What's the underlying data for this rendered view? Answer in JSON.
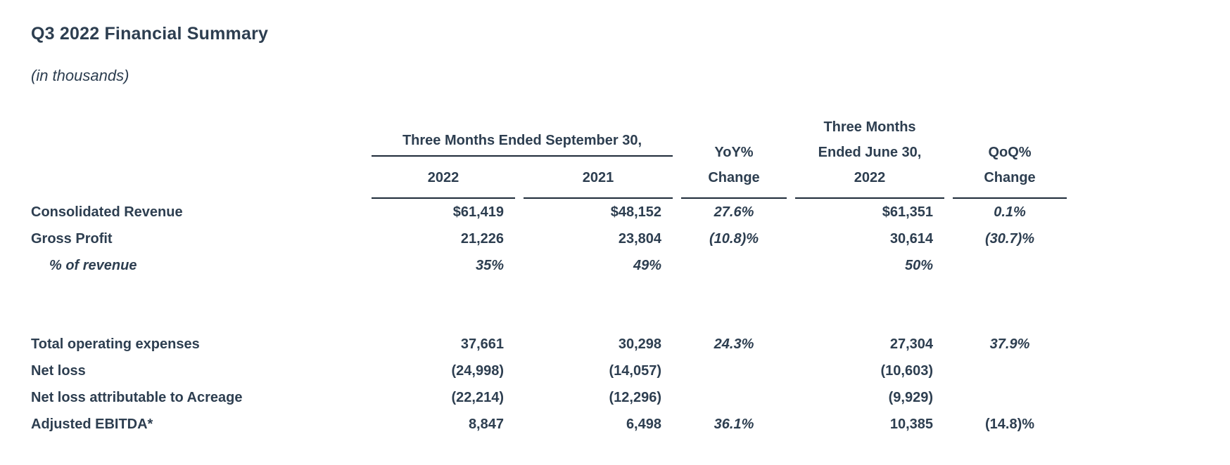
{
  "title": "Q3 2022 Financial Summary",
  "subtitle": "(in thousands)",
  "colors": {
    "text": "#2d3e50",
    "rule": "#1d2a38",
    "background": "#ffffff"
  },
  "table": {
    "header": {
      "group": "Three Months Ended September 30,",
      "sep2022": "2022",
      "sep2021": "2021",
      "yoy": [
        "YoY%",
        "Change"
      ],
      "june": [
        "Three Months",
        "Ended June 30,",
        "2022"
      ],
      "qoq": [
        "QoQ%",
        "Change"
      ]
    },
    "rows": [
      {
        "label": "Consolidated Revenue",
        "sep2022": "$61,419",
        "sep2021": "$48,152",
        "yoy": "27.6%",
        "jun2022": "$61,351",
        "qoq": "0.1%"
      },
      {
        "label": "Gross Profit",
        "sep2022": "21,226",
        "sep2021": "23,804",
        "yoy": "(10.8)%",
        "jun2022": "30,614",
        "qoq": "(30.7)%"
      },
      {
        "label": "% of revenue",
        "sep2022": "35%",
        "sep2021": "49%",
        "yoy": "",
        "jun2022": "50%",
        "qoq": ""
      },
      {
        "label": "Total operating expenses",
        "sep2022": "37,661",
        "sep2021": "30,298",
        "yoy": "24.3%",
        "jun2022": "27,304",
        "qoq": "37.9%"
      },
      {
        "label": "Net loss",
        "sep2022": "(24,998)",
        "sep2021": "(14,057)",
        "yoy": "",
        "jun2022": "(10,603)",
        "qoq": ""
      },
      {
        "label": "Net loss attributable to Acreage",
        "sep2022": "(22,214)",
        "sep2021": "(12,296)",
        "yoy": "",
        "jun2022": "(9,929)",
        "qoq": ""
      },
      {
        "label": "Adjusted EBITDA*",
        "sep2022": "8,847",
        "sep2021": "6,498",
        "yoy": "36.1%",
        "jun2022": "10,385",
        "qoq": "(14.8)%"
      }
    ]
  }
}
